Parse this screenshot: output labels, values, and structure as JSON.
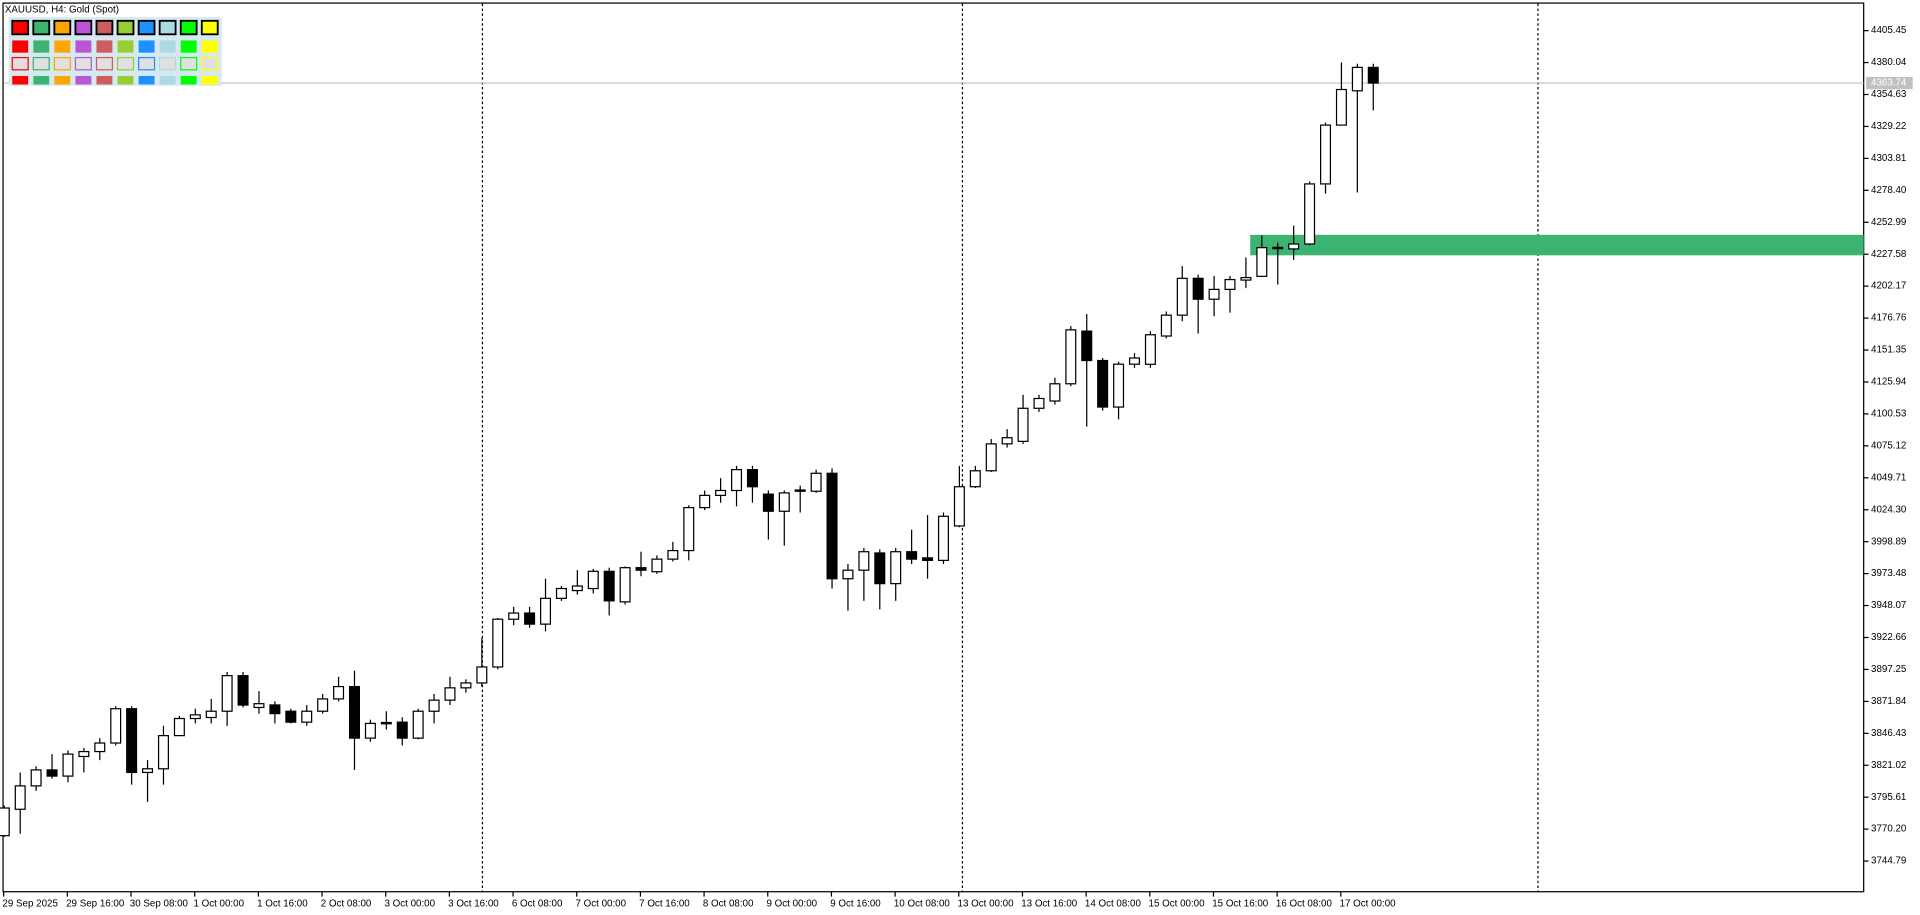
{
  "chart_data": {
    "type": "candlestick",
    "title": "XAUUSD, H4:  Gold (Spot)",
    "categories": [
      "29 Sep 2025",
      null,
      null,
      null,
      "29 Sep 16:00",
      null,
      null,
      null,
      "30 Sep 08:00",
      null,
      null,
      null,
      "1 Oct 00:00",
      null,
      null,
      null,
      "1 Oct 16:00",
      null,
      null,
      null,
      "2 Oct 08:00",
      null,
      null,
      null,
      "3 Oct 00:00",
      null,
      null,
      null,
      "3 Oct 16:00",
      null,
      null,
      null,
      "6 Oct 08:00",
      null,
      null,
      null,
      "7 Oct 00:00",
      null,
      null,
      null,
      "7 Oct 16:00",
      null,
      null,
      null,
      "8 Oct 08:00",
      null,
      null,
      null,
      "9 Oct 00:00",
      null,
      null,
      null,
      "9 Oct 16:00",
      null,
      null,
      null,
      "10 Oct 08:00",
      null,
      null,
      null,
      "13 Oct 00:00",
      null,
      null,
      null,
      "13 Oct 16:00",
      null,
      null,
      null,
      "14 Oct 08:00",
      null,
      null,
      null,
      "15 Oct 00:00",
      null,
      null,
      null,
      "15 Oct 16:00",
      null,
      null,
      null,
      "16 Oct 08:00",
      null,
      null,
      null,
      "17 Oct 00:00",
      null,
      null
    ],
    "open": [
      3765,
      3786.0,
      3804.6,
      3817.3,
      3812.4,
      3828,
      3831.9,
      3838.7,
      3866,
      3815.3,
      3818.2,
      3844.6,
      3858.2,
      3859,
      3864,
      3892.3,
      3867,
      3869,
      3864,
      3855.3,
      3864,
      3873.8,
      3883.6,
      3842.6,
      3854,
      3855.3,
      3842.6,
      3864,
      3872.8,
      3882.6,
      3886.5,
      3899.2,
      3937.2,
      3942.1,
      3933.3,
      3953.8,
      3960,
      3961.6,
      3975.3,
      3951,
      3978.2,
      3975,
      3985,
      3991.8,
      4026,
      4035.7,
      4039.6,
      4056.2,
      4036.7,
      4023.1,
      4039,
      4039,
      4053.3,
      3969.4,
      3976.2,
      3989.9,
      3965.5,
      3990.9,
      3986,
      3984,
      4011.4,
      4042.6,
      4055.3,
      4076.7,
      4078.7,
      4105,
      4110.8,
      4124.5,
      4166.4,
      4143.0,
      4106,
      4140.1,
      4140,
      4162.5,
      4179.1,
      4208.4,
      4191.8,
      4199.6,
      4207,
      4210,
      4232,
      4231.8,
      4235.7,
      4283.5,
      4330.3,
      4357.6,
      4376.2
    ],
    "high": [
      3789,
      3815.3,
      3820.2,
      3829.9,
      3832.8,
      3834.8,
      3842.6,
      3868.0,
      3868,
      3825.1,
      3852.4,
      3860.2,
      3866.0,
      3873.8,
      3895.3,
      3895.3,
      3880,
      3871.9,
      3866,
      3868.9,
      3877.7,
      3891.4,
      3896.3,
      3857.3,
      3864,
      3859.2,
      3866,
      3877.7,
      3891.4,
      3889.4,
      3922.6,
      3938.2,
      3947,
      3947,
      3969.4,
      3963.6,
      3976.2,
      3977.2,
      3978.2,
      3979.2,
      3990.9,
      3988,
      3998.7,
      4027.9,
      4039.6,
      4049.4,
      4059.2,
      4059.2,
      4039.6,
      4039.6,
      4043.5,
      4056.2,
      4057.2,
      3981.1,
      3993.8,
      3992.8,
      3993.8,
      4008.4,
      4020.1,
      4022.1,
      4059.2,
      4059.2,
      4080.6,
      4088.4,
      4115.7,
      4115.7,
      4129.4,
      4170.4,
      4180.1,
      4145.0,
      4142.1,
      4148.9,
      4166.4,
      4182.0,
      4218.1,
      4211.3,
      4210.3,
      4210.3,
      4225.0,
      4242.5,
      4236.7,
      4250.3,
      4285.4,
      4332.3,
      4380.1,
      4379.1,
      4379.1
    ],
    "low": [
      3764,
      3766.5,
      3800.7,
      3810.4,
      3807.5,
      3815.3,
      3825.1,
      3836.8,
      3805.6,
      3791.9,
      3805.6,
      3844.6,
      3854.3,
      3854.3,
      3852.4,
      3867.0,
      3862,
      3854.3,
      3854.3,
      3852.4,
      3862.1,
      3871.9,
      3817.3,
      3839.7,
      3849.4,
      3836.8,
      3841.6,
      3854.3,
      3868.9,
      3878.7,
      3883.6,
      3897.3,
      3932.4,
      3930.4,
      3927.5,
      3951.8,
      3956.7,
      3957.7,
      3940.2,
      3948.9,
      3971.4,
      3973.3,
      3983.1,
      3984.0,
      4024.0,
      4029.9,
      4027.0,
      4029.9,
      4000.6,
      3995.7,
      4022.1,
      4037.7,
      3961.6,
      3944.0,
      3951.8,
      3945.0,
      3951.8,
      3981.1,
      3969.4,
      3981.1,
      4010.4,
      4041.6,
      4054.3,
      4073.8,
      4076.7,
      4102.1,
      4107.9,
      4122.6,
      4090.4,
      4103.1,
      4096.2,
      4137.2,
      4137.2,
      4160.6,
      4174.3,
      4164.5,
      4178.2,
      4181.1,
      4200.6,
      4209.4,
      4203.5,
      4223.0,
      4234.7,
      4275.7,
      4330,
      4276.7,
      4342.0
    ],
    "close": [
      3787,
      3804.6,
      3817.3,
      3812.4,
      3829.9,
      3831.9,
      3838.7,
      3866.0,
      3815.3,
      3818.2,
      3844.6,
      3858.2,
      3861.1,
      3864,
      3892.3,
      3868.9,
      3870,
      3862.1,
      3855.3,
      3864,
      3873.8,
      3883.6,
      3842.6,
      3854.3,
      3855,
      3842.6,
      3864,
      3872.8,
      3882.6,
      3886.5,
      3899.2,
      3937.2,
      3942.1,
      3933.3,
      3953.8,
      3961.6,
      3963.6,
      3975.3,
      3951.8,
      3978.2,
      3976.2,
      3985,
      3991.8,
      4026,
      4035.7,
      4039.6,
      4056.2,
      4042.6,
      4023.1,
      4037.7,
      4040,
      4053.3,
      3969.4,
      3976.2,
      3990.9,
      3965.5,
      3990.9,
      3985,
      3984,
      4019.1,
      4042.6,
      4055.3,
      4076.7,
      4081.6,
      4105,
      4112.8,
      4124.5,
      4167.4,
      4143.0,
      4106.0,
      4140.1,
      4145,
      4163.5,
      4179.1,
      4208.4,
      4191.8,
      4199.6,
      4207.4,
      4209,
      4232.8,
      4233,
      4235.7,
      4283.5,
      4330.3,
      4358.6,
      4376.2,
      4363.74
    ],
    "up_color": "#ffffff",
    "down_color": "#000000",
    "last_price": 4363.74,
    "zone": {
      "low": 4226.7,
      "high": 4243.0,
      "color": "#3cb371"
    },
    "ylim": [
      3720.4,
      4426.9
    ],
    "yticks": [
      4405.45,
      4380.04,
      4354.63,
      4329.22,
      4303.81,
      {
        "value": 4278.4,
        "label": "4278.40"
      },
      4252.99,
      4227.58,
      4202.17,
      4176.76,
      4151.35,
      4125.94,
      4100.53,
      4075.12,
      4049.71,
      {
        "value": 4024.3,
        "label": "4024.30"
      },
      3998.89,
      3973.48,
      3948.07,
      3922.66,
      3897.25,
      3871.84,
      3846.43,
      3821.02,
      3795.61,
      {
        "value": 3770.2,
        "label": "3770.20"
      },
      3744.79
    ]
  }
}
